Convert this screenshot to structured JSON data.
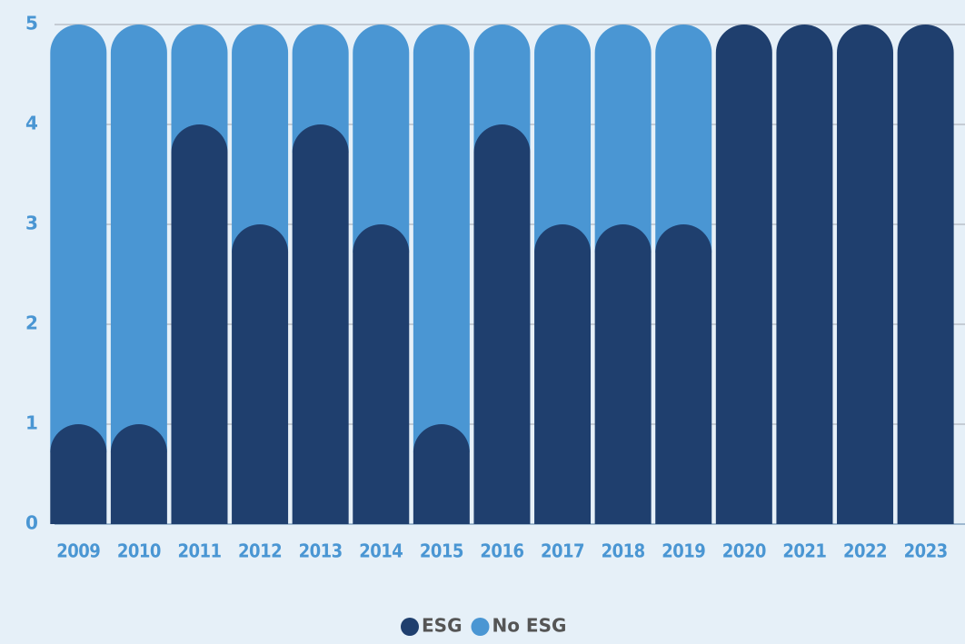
{
  "chart_data": {
    "type": "stacked_bar",
    "categories": [
      "2009",
      "2010",
      "2011",
      "2012",
      "2013",
      "2014",
      "2015",
      "2016",
      "2017",
      "2018",
      "2019",
      "2020",
      "2021",
      "2022",
      "2023"
    ],
    "series": [
      {
        "name": "ESG",
        "color": "#1f3f6e",
        "values": [
          1,
          1,
          4,
          3,
          4,
          3,
          1,
          4,
          3,
          3,
          3,
          5,
          5,
          5,
          5
        ]
      },
      {
        "name": "No ESG",
        "color": "#4a96d3",
        "values": [
          4,
          4,
          1,
          2,
          1,
          2,
          4,
          1,
          2,
          2,
          2,
          0,
          0,
          0,
          0
        ]
      }
    ],
    "ylim": [
      0,
      5
    ],
    "yticks": [
      0,
      1,
      2,
      3,
      4,
      5
    ],
    "grid": true,
    "legend": "bottom"
  }
}
